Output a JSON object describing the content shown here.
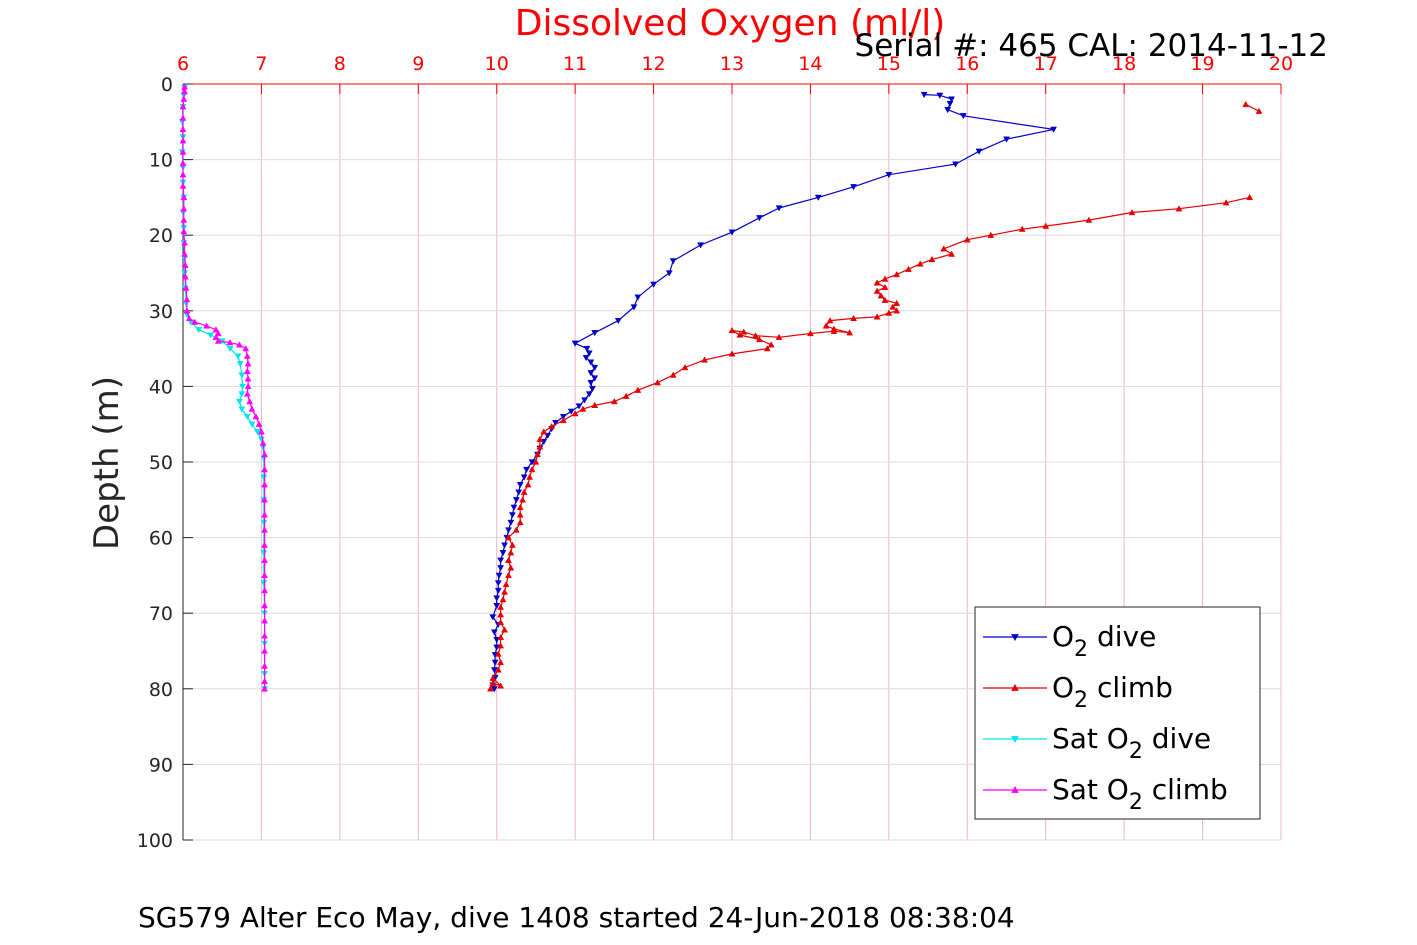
{
  "chart_data": {
    "type": "line",
    "title": "Dissolved Oxygen (ml/l)",
    "subtitle": "Serial #: 465  CAL: 2014-11-12",
    "caption": "SG579 Alter Eco May, dive 1408 started 24-Jun-2018 08:38:04",
    "xlabel": "",
    "ylabel": "Depth (m)",
    "xlim": [
      6,
      20
    ],
    "ylim": [
      0,
      100
    ],
    "y_reversed": true,
    "x_axis_position": "top",
    "xticks": [
      6,
      7,
      8,
      9,
      10,
      11,
      12,
      13,
      14,
      15,
      16,
      17,
      18,
      19,
      20
    ],
    "yticks": [
      0,
      10,
      20,
      30,
      40,
      50,
      60,
      70,
      80,
      90,
      100
    ],
    "grid": true,
    "legend_position": "bottom-right",
    "colors": {
      "title": "#ff0000",
      "x_ticks": "#ff0000",
      "grid_x": "#f4b4c8",
      "grid_y": "#dcdcdc"
    },
    "series": [
      {
        "name_main": "O",
        "name_sub": "2",
        "name_tail": " dive",
        "color": "#0000cc",
        "marker": "triangle-down",
        "points": [
          [
            15.45,
            1.4
          ],
          [
            15.65,
            1.5
          ],
          [
            15.8,
            2.0
          ],
          [
            15.78,
            2.6
          ],
          [
            15.75,
            3.4
          ],
          [
            15.95,
            4.2
          ],
          [
            17.1,
            6.0
          ],
          [
            16.5,
            7.3
          ],
          [
            16.15,
            8.9
          ],
          [
            15.85,
            10.6
          ],
          [
            15.0,
            12.0
          ],
          [
            14.55,
            13.6
          ],
          [
            14.1,
            15.0
          ],
          [
            13.6,
            16.4
          ],
          [
            13.35,
            17.7
          ],
          [
            13.0,
            19.6
          ],
          [
            12.6,
            21.3
          ],
          [
            12.25,
            23.4
          ],
          [
            12.2,
            25.0
          ],
          [
            12.0,
            26.5
          ],
          [
            11.8,
            28.2
          ],
          [
            11.75,
            29.5
          ],
          [
            11.55,
            31.3
          ],
          [
            11.25,
            32.9
          ],
          [
            11.0,
            34.3
          ],
          [
            11.15,
            35.0
          ],
          [
            11.18,
            35.6
          ],
          [
            11.14,
            36.2
          ],
          [
            11.2,
            36.8
          ],
          [
            11.25,
            37.5
          ],
          [
            11.2,
            38.2
          ],
          [
            11.25,
            38.9
          ],
          [
            11.2,
            39.5
          ],
          [
            11.22,
            40.3
          ],
          [
            11.18,
            41.0
          ],
          [
            11.12,
            41.8
          ],
          [
            11.05,
            42.6
          ],
          [
            10.95,
            43.3
          ],
          [
            10.85,
            44.0
          ],
          [
            10.75,
            44.8
          ],
          [
            10.7,
            45.6
          ],
          [
            10.65,
            46.5
          ],
          [
            10.6,
            47.3
          ],
          [
            10.55,
            48.2
          ],
          [
            10.52,
            49.0
          ],
          [
            10.45,
            50.0
          ],
          [
            10.38,
            51.0
          ],
          [
            10.35,
            52.0
          ],
          [
            10.3,
            53.0
          ],
          [
            10.28,
            54.0
          ],
          [
            10.25,
            55.0
          ],
          [
            10.22,
            56.0
          ],
          [
            10.2,
            57.0
          ],
          [
            10.18,
            58.0
          ],
          [
            10.15,
            59.0
          ],
          [
            10.13,
            60.0
          ],
          [
            10.1,
            61.0
          ],
          [
            10.08,
            62.0
          ],
          [
            10.05,
            63.0
          ],
          [
            10.05,
            64.0
          ],
          [
            10.03,
            65.0
          ],
          [
            10.02,
            66.0
          ],
          [
            10.02,
            67.0
          ],
          [
            10.0,
            68.0
          ],
          [
            10.0,
            69.0
          ],
          [
            9.95,
            70.5
          ],
          [
            10.02,
            71.5
          ],
          [
            9.97,
            72.5
          ],
          [
            10.0,
            73.5
          ],
          [
            10.0,
            74.5
          ],
          [
            9.98,
            75.5
          ],
          [
            9.98,
            76.5
          ],
          [
            9.97,
            77.5
          ],
          [
            9.98,
            78.5
          ],
          [
            9.95,
            79.5
          ],
          [
            9.97,
            80.0
          ]
        ]
      },
      {
        "name_main": "O",
        "name_sub": "2",
        "name_tail": " climb",
        "color": "#e60000",
        "marker": "triangle-up",
        "points": [
          [
            9.92,
            80.0
          ],
          [
            9.95,
            79.3
          ],
          [
            10.05,
            79.6
          ],
          [
            9.95,
            78.6
          ],
          [
            10.02,
            77.5
          ],
          [
            10.05,
            76.5
          ],
          [
            10.02,
            75.4
          ],
          [
            10.05,
            74.3
          ],
          [
            10.05,
            73.2
          ],
          [
            10.1,
            72.2
          ],
          [
            10.05,
            71.2
          ],
          [
            10.05,
            70.2
          ],
          [
            10.05,
            69.2
          ],
          [
            10.08,
            68.2
          ],
          [
            10.1,
            67.2
          ],
          [
            10.12,
            66.2
          ],
          [
            10.15,
            65.0
          ],
          [
            10.18,
            64.0
          ],
          [
            10.15,
            63.0
          ],
          [
            10.18,
            62.0
          ],
          [
            10.2,
            61.0
          ],
          [
            10.15,
            60.0
          ],
          [
            10.25,
            59.0
          ],
          [
            10.3,
            58.0
          ],
          [
            10.3,
            57.0
          ],
          [
            10.3,
            56.0
          ],
          [
            10.33,
            55.0
          ],
          [
            10.35,
            54.0
          ],
          [
            10.4,
            53.0
          ],
          [
            10.42,
            52.0
          ],
          [
            10.45,
            51.0
          ],
          [
            10.5,
            50.0
          ],
          [
            10.52,
            49.0
          ],
          [
            10.55,
            48.0
          ],
          [
            10.55,
            47.0
          ],
          [
            10.6,
            46.0
          ],
          [
            10.7,
            45.3
          ],
          [
            10.85,
            44.5
          ],
          [
            11.0,
            43.6
          ],
          [
            11.1,
            43.0
          ],
          [
            11.25,
            42.5
          ],
          [
            11.5,
            42.0
          ],
          [
            11.65,
            41.3
          ],
          [
            11.8,
            40.5
          ],
          [
            12.05,
            39.5
          ],
          [
            12.25,
            38.5
          ],
          [
            12.4,
            37.5
          ],
          [
            12.65,
            36.5
          ],
          [
            13.0,
            35.7
          ],
          [
            13.45,
            35.0
          ],
          [
            13.5,
            34.5
          ],
          [
            13.35,
            33.8
          ],
          [
            13.1,
            33.2
          ],
          [
            13.0,
            32.6
          ],
          [
            13.15,
            32.8
          ],
          [
            13.3,
            33.3
          ],
          [
            13.6,
            33.5
          ],
          [
            14.0,
            33.0
          ],
          [
            14.3,
            32.7
          ],
          [
            14.5,
            32.9
          ],
          [
            14.3,
            32.4
          ],
          [
            14.2,
            32.0
          ],
          [
            14.25,
            31.3
          ],
          [
            14.55,
            31.0
          ],
          [
            14.85,
            30.8
          ],
          [
            15.0,
            30.3
          ],
          [
            15.1,
            30.0
          ],
          [
            15.05,
            29.5
          ],
          [
            15.1,
            29.0
          ],
          [
            14.95,
            28.6
          ],
          [
            14.9,
            28.0
          ],
          [
            14.85,
            27.4
          ],
          [
            14.95,
            26.9
          ],
          [
            14.85,
            26.3
          ],
          [
            14.95,
            25.8
          ],
          [
            15.1,
            25.2
          ],
          [
            15.25,
            24.5
          ],
          [
            15.4,
            23.8
          ],
          [
            15.55,
            23.2
          ],
          [
            15.8,
            22.5
          ],
          [
            15.7,
            21.8
          ],
          [
            16.0,
            20.6
          ],
          [
            16.3,
            20.0
          ],
          [
            16.7,
            19.2
          ],
          [
            17.0,
            18.8
          ],
          [
            17.55,
            18.0
          ],
          [
            18.1,
            17.0
          ],
          [
            18.7,
            16.5
          ],
          [
            19.3,
            15.7
          ],
          [
            19.6,
            15.0
          ]
        ]
      },
      {
        "name_main": "O",
        "name_sub": "2",
        "name_tail": " climb",
        "color": "#e60000",
        "marker": "triangle-up",
        "legend": false,
        "points": [
          [
            19.55,
            2.7
          ],
          [
            19.72,
            3.6
          ]
        ]
      },
      {
        "name_main": "Sat O",
        "name_sub": "2",
        "name_tail": " dive",
        "color": "#00e5ee",
        "marker": "triangle-down",
        "points": [
          [
            6.02,
            0.5
          ],
          [
            6.01,
            1.5
          ],
          [
            6.0,
            3.0
          ],
          [
            5.99,
            5.0
          ],
          [
            6.0,
            7.0
          ],
          [
            5.99,
            9.0
          ],
          [
            6.0,
            11.0
          ],
          [
            6.0,
            13.0
          ],
          [
            6.01,
            15.0
          ],
          [
            6.0,
            17.0
          ],
          [
            6.01,
            19.0
          ],
          [
            6.01,
            21.0
          ],
          [
            6.02,
            23.0
          ],
          [
            6.02,
            25.0
          ],
          [
            6.03,
            27.0
          ],
          [
            6.04,
            29.0
          ],
          [
            6.05,
            30.5
          ],
          [
            6.1,
            31.5
          ],
          [
            6.2,
            32.5
          ],
          [
            6.35,
            33.2
          ],
          [
            6.5,
            34.0
          ],
          [
            6.6,
            35.0
          ],
          [
            6.7,
            36.0
          ],
          [
            6.73,
            37.0
          ],
          [
            6.75,
            38.5
          ],
          [
            6.76,
            40.0
          ],
          [
            6.75,
            41.0
          ],
          [
            6.72,
            42.0
          ],
          [
            6.75,
            43.0
          ],
          [
            6.82,
            44.0
          ],
          [
            6.88,
            45.0
          ],
          [
            6.95,
            46.0
          ],
          [
            7.0,
            47.0
          ],
          [
            7.02,
            48.0
          ],
          [
            7.03,
            49.5
          ],
          [
            7.03,
            52.0
          ],
          [
            7.03,
            55.0
          ],
          [
            7.03,
            58.0
          ],
          [
            7.03,
            62.0
          ],
          [
            7.03,
            66.0
          ],
          [
            7.04,
            70.0
          ],
          [
            7.04,
            74.0
          ],
          [
            7.04,
            78.0
          ],
          [
            7.04,
            80.0
          ]
        ]
      },
      {
        "name_main": "Sat O",
        "name_sub": "2",
        "name_tail": " climb",
        "color": "#ff00ff",
        "marker": "triangle-up",
        "points": [
          [
            7.04,
            80.0
          ],
          [
            7.04,
            79.0
          ],
          [
            7.04,
            77.0
          ],
          [
            7.04,
            75.0
          ],
          [
            7.04,
            73.0
          ],
          [
            7.04,
            71.0
          ],
          [
            7.04,
            69.0
          ],
          [
            7.04,
            67.0
          ],
          [
            7.04,
            65.0
          ],
          [
            7.04,
            63.0
          ],
          [
            7.04,
            61.0
          ],
          [
            7.04,
            59.0
          ],
          [
            7.04,
            57.0
          ],
          [
            7.04,
            55.0
          ],
          [
            7.04,
            53.0
          ],
          [
            7.04,
            51.0
          ],
          [
            7.04,
            49.0
          ],
          [
            7.02,
            47.5
          ],
          [
            7.0,
            46.0
          ],
          [
            6.97,
            45.0
          ],
          [
            6.93,
            44.0
          ],
          [
            6.88,
            43.0
          ],
          [
            6.85,
            42.0
          ],
          [
            6.82,
            41.0
          ],
          [
            6.83,
            40.0
          ],
          [
            6.83,
            39.0
          ],
          [
            6.82,
            38.0
          ],
          [
            6.83,
            37.0
          ],
          [
            6.82,
            36.0
          ],
          [
            6.8,
            35.0
          ],
          [
            6.72,
            34.5
          ],
          [
            6.6,
            34.2
          ],
          [
            6.45,
            34.0
          ],
          [
            6.42,
            33.5
          ],
          [
            6.45,
            33.0
          ],
          [
            6.42,
            32.5
          ],
          [
            6.3,
            32.0
          ],
          [
            6.15,
            31.5
          ],
          [
            6.08,
            31.0
          ],
          [
            6.05,
            30.0
          ],
          [
            6.05,
            28.5
          ],
          [
            6.04,
            27.0
          ],
          [
            6.03,
            25.5
          ],
          [
            6.03,
            24.0
          ],
          [
            6.02,
            22.5
          ],
          [
            6.02,
            21.0
          ],
          [
            6.01,
            19.5
          ],
          [
            6.01,
            18.0
          ],
          [
            6.01,
            16.5
          ],
          [
            6.01,
            15.0
          ],
          [
            6.0,
            13.5
          ],
          [
            6.0,
            12.0
          ],
          [
            6.0,
            10.5
          ],
          [
            6.0,
            9.0
          ],
          [
            6.0,
            7.5
          ],
          [
            6.0,
            6.0
          ],
          [
            6.0,
            4.5
          ],
          [
            6.0,
            3.0
          ],
          [
            6.01,
            2.0
          ],
          [
            6.02,
            1.0
          ],
          [
            6.02,
            0.4
          ]
        ]
      }
    ]
  }
}
